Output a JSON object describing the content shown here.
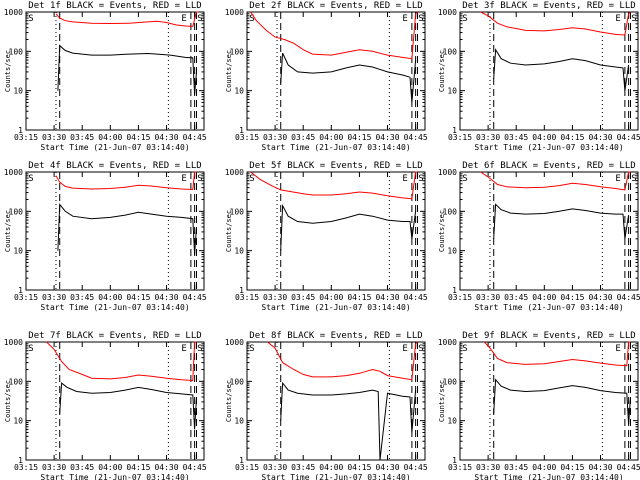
{
  "chart_data": [
    {
      "type": "line",
      "title": "Det 1f BLACK = Events, RED = LLD",
      "xlabel": "Start Time (21-Jun-07 03:14:40)",
      "ylabel": "Counts/sec",
      "yscale": "log",
      "ylim": [
        1,
        1000
      ],
      "y_tick_labels": [
        "1",
        "10",
        "100",
        "1000"
      ],
      "x_tick_labels": [
        "03:15",
        "03:30",
        "03:45",
        "04:00",
        "04:15",
        "04:30",
        "04:45"
      ],
      "markers": [
        "S",
        "E",
        "S"
      ],
      "series": [
        {
          "name": "BLACK",
          "color": "#000000",
          "x": [
            "03:32",
            "03:33",
            "03:36",
            "03:40",
            "03:50",
            "04:00",
            "04:10",
            "04:20",
            "04:25",
            "04:32",
            "04:40",
            "04:44",
            "04:45",
            "04:46"
          ],
          "values": [
            10,
            140,
            105,
            90,
            80,
            80,
            85,
            88,
            85,
            80,
            70,
            68,
            8,
            30
          ]
        },
        {
          "name": "RED",
          "color": "#ff0000",
          "x": [
            "03:31",
            "03:33",
            "03:36",
            "03:40",
            "03:50",
            "04:00",
            "04:10",
            "04:20",
            "04:25",
            "04:30",
            "04:35",
            "04:40",
            "04:44",
            "04:46",
            "04:47"
          ],
          "values": [
            900,
            700,
            600,
            560,
            520,
            510,
            520,
            560,
            580,
            540,
            470,
            440,
            430,
            1000,
            1000
          ]
        }
      ]
    },
    {
      "type": "line",
      "title": "Det 2f BLACK = Events, RED = LLD",
      "xlabel": "Start Time (21-Jun-07 03:14:40)",
      "ylabel": "Counts/sec",
      "yscale": "log",
      "ylim": [
        1,
        1000
      ],
      "y_tick_labels": [
        "1",
        "10",
        "100",
        "1000"
      ],
      "x_tick_labels": [
        "03:15",
        "03:30",
        "03:45",
        "04:00",
        "04:15",
        "04:30",
        "04:45"
      ],
      "markers": [
        "S",
        "E",
        "S"
      ],
      "series": [
        {
          "name": "BLACK",
          "color": "#000000",
          "x": [
            "03:33",
            "03:34",
            "03:37",
            "03:42",
            "03:50",
            "04:00",
            "04:08",
            "04:15",
            "04:22",
            "04:30",
            "04:38",
            "04:42",
            "04:43",
            "04:45"
          ],
          "values": [
            15,
            90,
            45,
            30,
            28,
            30,
            38,
            45,
            40,
            30,
            25,
            22,
            5,
            60
          ]
        },
        {
          "name": "RED",
          "color": "#ff0000",
          "x": [
            "03:17",
            "03:20",
            "03:25",
            "03:30",
            "03:35",
            "03:40",
            "03:45",
            "03:50",
            "04:00",
            "04:08",
            "04:15",
            "04:22",
            "04:30",
            "04:38",
            "04:43",
            "04:45",
            "04:46"
          ],
          "values": [
            1000,
            600,
            350,
            230,
            200,
            160,
            110,
            85,
            80,
            95,
            110,
            100,
            80,
            70,
            65,
            900,
            1000
          ]
        }
      ]
    },
    {
      "type": "line",
      "title": "Det 3f BLACK = Events, RED = LLD",
      "xlabel": "Start Time (21-Jun-07 03:14:40)",
      "ylabel": "Counts/sec",
      "yscale": "log",
      "ylim": [
        1,
        1000
      ],
      "y_tick_labels": [
        "1",
        "10",
        "100",
        "1000"
      ],
      "x_tick_labels": [
        "03:15",
        "03:30",
        "03:45",
        "04:00",
        "04:15",
        "04:30",
        "04:45"
      ],
      "markers": [
        "S",
        "E",
        "S"
      ],
      "series": [
        {
          "name": "BLACK",
          "color": "#000000",
          "x": [
            "03:33",
            "03:34",
            "03:37",
            "03:42",
            "03:50",
            "04:00",
            "04:08",
            "04:15",
            "04:22",
            "04:30",
            "04:38",
            "04:42",
            "04:43",
            "04:45"
          ],
          "values": [
            20,
            110,
            65,
            50,
            45,
            48,
            55,
            65,
            58,
            45,
            40,
            38,
            10,
            45
          ]
        },
        {
          "name": "RED",
          "color": "#ff0000",
          "x": [
            "03:26",
            "03:30",
            "03:35",
            "03:40",
            "03:50",
            "04:00",
            "04:08",
            "04:15",
            "04:22",
            "04:30",
            "04:38",
            "04:43",
            "04:45",
            "04:46"
          ],
          "values": [
            1000,
            800,
            520,
            420,
            340,
            330,
            360,
            400,
            370,
            310,
            270,
            260,
            900,
            1000
          ]
        }
      ]
    },
    {
      "type": "line",
      "title": "Det 4f BLACK = Events, RED = LLD",
      "xlabel": "Start Time (21-Jun-07 03:14:40)",
      "ylabel": "Counts/sec",
      "yscale": "log",
      "ylim": [
        1,
        1000
      ],
      "y_tick_labels": [
        "1",
        "10",
        "100",
        "1000"
      ],
      "x_tick_labels": [
        "03:15",
        "03:30",
        "03:45",
        "04:00",
        "04:15",
        "04:30",
        "04:45"
      ],
      "markers": [
        "S",
        "E",
        "S"
      ],
      "series": [
        {
          "name": "BLACK",
          "color": "#000000",
          "x": [
            "03:32",
            "03:33",
            "03:36",
            "03:40",
            "03:50",
            "04:00",
            "04:08",
            "04:15",
            "04:22",
            "04:30",
            "04:38",
            "04:44",
            "04:45",
            "04:46"
          ],
          "values": [
            10,
            150,
            100,
            75,
            65,
            70,
            80,
            95,
            85,
            75,
            70,
            65,
            8,
            40
          ]
        },
        {
          "name": "RED",
          "color": "#ff0000",
          "x": [
            "03:31",
            "03:33",
            "03:36",
            "03:40",
            "03:50",
            "04:00",
            "04:08",
            "04:15",
            "04:22",
            "04:30",
            "04:38",
            "04:44",
            "04:45",
            "04:46"
          ],
          "values": [
            800,
            550,
            430,
            390,
            370,
            380,
            410,
            460,
            440,
            400,
            370,
            360,
            1000,
            1000
          ]
        }
      ]
    },
    {
      "type": "line",
      "title": "Det 5f BLACK = Events, RED = LLD",
      "xlabel": "Start Time (21-Jun-07 03:14:40)",
      "ylabel": "Counts/sec",
      "yscale": "log",
      "ylim": [
        1,
        1000
      ],
      "y_tick_labels": [
        "1",
        "10",
        "100",
        "1000"
      ],
      "x_tick_labels": [
        "03:15",
        "03:30",
        "03:45",
        "04:00",
        "04:15",
        "04:30",
        "04:45"
      ],
      "markers": [
        "S",
        "E",
        "S"
      ],
      "series": [
        {
          "name": "BLACK",
          "color": "#000000",
          "x": [
            "03:33",
            "03:34",
            "03:37",
            "03:42",
            "03:50",
            "04:00",
            "04:08",
            "04:15",
            "04:22",
            "04:30",
            "04:38",
            "04:42",
            "04:43",
            "04:45"
          ],
          "values": [
            10,
            140,
            75,
            55,
            50,
            55,
            68,
            85,
            75,
            60,
            55,
            55,
            20,
            100
          ]
        },
        {
          "name": "RED",
          "color": "#ff0000",
          "x": [
            "03:17",
            "03:22",
            "03:28",
            "03:33",
            "03:38",
            "03:45",
            "03:50",
            "04:00",
            "04:08",
            "04:15",
            "04:22",
            "04:30",
            "04:38",
            "04:43",
            "04:45",
            "04:46"
          ],
          "values": [
            1000,
            650,
            450,
            350,
            320,
            280,
            260,
            260,
            280,
            310,
            290,
            250,
            220,
            210,
            1000,
            1000
          ]
        }
      ]
    },
    {
      "type": "line",
      "title": "Det 6f BLACK = Events, RED = LLD",
      "xlabel": "Start Time (21-Jun-07 03:14:40)",
      "ylabel": "Counts/sec",
      "yscale": "log",
      "ylim": [
        1,
        1000
      ],
      "y_tick_labels": [
        "1",
        "10",
        "100",
        "1000"
      ],
      "x_tick_labels": [
        "03:15",
        "03:30",
        "03:45",
        "04:00",
        "04:15",
        "04:30",
        "04:45"
      ],
      "markers": [
        "S",
        "E",
        "S"
      ],
      "series": [
        {
          "name": "BLACK",
          "color": "#000000",
          "x": [
            "03:33",
            "03:34",
            "03:37",
            "03:42",
            "03:50",
            "04:00",
            "04:08",
            "04:15",
            "04:22",
            "04:30",
            "04:38",
            "04:42",
            "04:43",
            "04:45"
          ],
          "values": [
            20,
            150,
            110,
            90,
            85,
            88,
            100,
            115,
            105,
            90,
            85,
            85,
            20,
            80
          ]
        },
        {
          "name": "RED",
          "color": "#ff0000",
          "x": [
            "03:26",
            "03:30",
            "03:35",
            "03:40",
            "03:50",
            "04:00",
            "04:08",
            "04:15",
            "04:22",
            "04:30",
            "04:38",
            "04:43",
            "04:45",
            "04:46"
          ],
          "values": [
            1000,
            750,
            480,
            420,
            400,
            410,
            450,
            520,
            480,
            420,
            380,
            350,
            1000,
            1000
          ]
        }
      ]
    },
    {
      "type": "line",
      "title": "Det 7f BLACK = Events, RED = LLD",
      "xlabel": "Start Time (21-Jun-07 03:14:40)",
      "ylabel": "Counts/sec",
      "yscale": "log",
      "ylim": [
        1,
        1000
      ],
      "y_tick_labels": [
        "1",
        "10",
        "100",
        "1000"
      ],
      "x_tick_labels": [
        "03:15",
        "03:30",
        "03:45",
        "04:00",
        "04:15",
        "04:30",
        "04:45"
      ],
      "markers": [
        "S",
        "E",
        "S"
      ],
      "series": [
        {
          "name": "BLACK",
          "color": "#000000",
          "x": [
            "03:33",
            "03:34",
            "03:37",
            "03:42",
            "03:50",
            "04:00",
            "04:08",
            "04:15",
            "04:22",
            "04:30",
            "04:38",
            "04:44",
            "04:45",
            "04:46"
          ],
          "values": [
            15,
            90,
            70,
            55,
            50,
            52,
            60,
            70,
            62,
            52,
            48,
            45,
            6,
            40
          ]
        },
        {
          "name": "RED",
          "color": "#ff0000",
          "x": [
            "03:26",
            "03:30",
            "03:34",
            "03:38",
            "03:45",
            "03:50",
            "04:00",
            "04:08",
            "04:15",
            "04:22",
            "04:30",
            "04:38",
            "04:44",
            "04:45",
            "04:46"
          ],
          "values": [
            1000,
            650,
            320,
            200,
            150,
            120,
            115,
            125,
            145,
            135,
            120,
            110,
            105,
            1000,
            1000
          ]
        }
      ]
    },
    {
      "type": "line",
      "title": "Det 8f BLACK = Events, RED = LLD",
      "xlabel": "Start Time (21-Jun-07 03:14:40)",
      "ylabel": "Counts/sec",
      "yscale": "log",
      "ylim": [
        1,
        1000
      ],
      "y_tick_labels": [
        "1",
        "10",
        "100",
        "1000"
      ],
      "x_tick_labels": [
        "03:15",
        "03:30",
        "03:45",
        "04:00",
        "04:15",
        "04:30",
        "04:45"
      ],
      "markers": [
        "S",
        "E",
        "S"
      ],
      "series": [
        {
          "name": "BLACK",
          "color": "#000000",
          "x": [
            "03:33",
            "03:34",
            "03:37",
            "03:42",
            "03:50",
            "04:00",
            "04:08",
            "04:15",
            "04:22",
            "04:25",
            "04:26",
            "04:30",
            "04:38",
            "04:42",
            "04:43",
            "04:45"
          ],
          "values": [
            10,
            90,
            60,
            50,
            45,
            45,
            48,
            52,
            60,
            55,
            1,
            50,
            42,
            40,
            5,
            60
          ]
        },
        {
          "name": "RED",
          "color": "#ff0000",
          "x": [
            "03:26",
            "03:30",
            "03:34",
            "03:40",
            "03:45",
            "03:50",
            "04:00",
            "04:08",
            "04:15",
            "04:22",
            "04:26",
            "04:30",
            "04:38",
            "04:43",
            "04:45",
            "04:46"
          ],
          "values": [
            1000,
            700,
            300,
            200,
            150,
            130,
            130,
            140,
            160,
            200,
            180,
            140,
            120,
            110,
            900,
            1000
          ]
        }
      ]
    },
    {
      "type": "line",
      "title": "Det 9f BLACK = Events, RED = LLD",
      "xlabel": "Start Time (21-Jun-07 03:14:40)",
      "ylabel": "Counts/sec",
      "yscale": "log",
      "ylim": [
        1,
        1000
      ],
      "y_tick_labels": [
        "1",
        "10",
        "100",
        "1000"
      ],
      "x_tick_labels": [
        "03:15",
        "03:30",
        "03:45",
        "04:00",
        "04:15",
        "04:30",
        "04:45"
      ],
      "markers": [
        "S",
        "E",
        "S"
      ],
      "series": [
        {
          "name": "BLACK",
          "color": "#000000",
          "x": [
            "03:33",
            "03:34",
            "03:37",
            "03:42",
            "03:50",
            "04:00",
            "04:08",
            "04:15",
            "04:22",
            "04:30",
            "04:38",
            "04:44",
            "04:45",
            "04:46"
          ],
          "values": [
            15,
            110,
            75,
            60,
            55,
            58,
            68,
            78,
            70,
            58,
            52,
            50,
            8,
            40
          ]
        },
        {
          "name": "RED",
          "color": "#ff0000",
          "x": [
            "03:28",
            "03:31",
            "03:35",
            "03:40",
            "03:50",
            "04:00",
            "04:08",
            "04:15",
            "04:22",
            "04:30",
            "04:38",
            "04:44",
            "04:45",
            "04:46"
          ],
          "values": [
            1000,
            700,
            380,
            300,
            270,
            280,
            320,
            360,
            330,
            290,
            260,
            250,
            1000,
            1000
          ]
        }
      ]
    }
  ]
}
